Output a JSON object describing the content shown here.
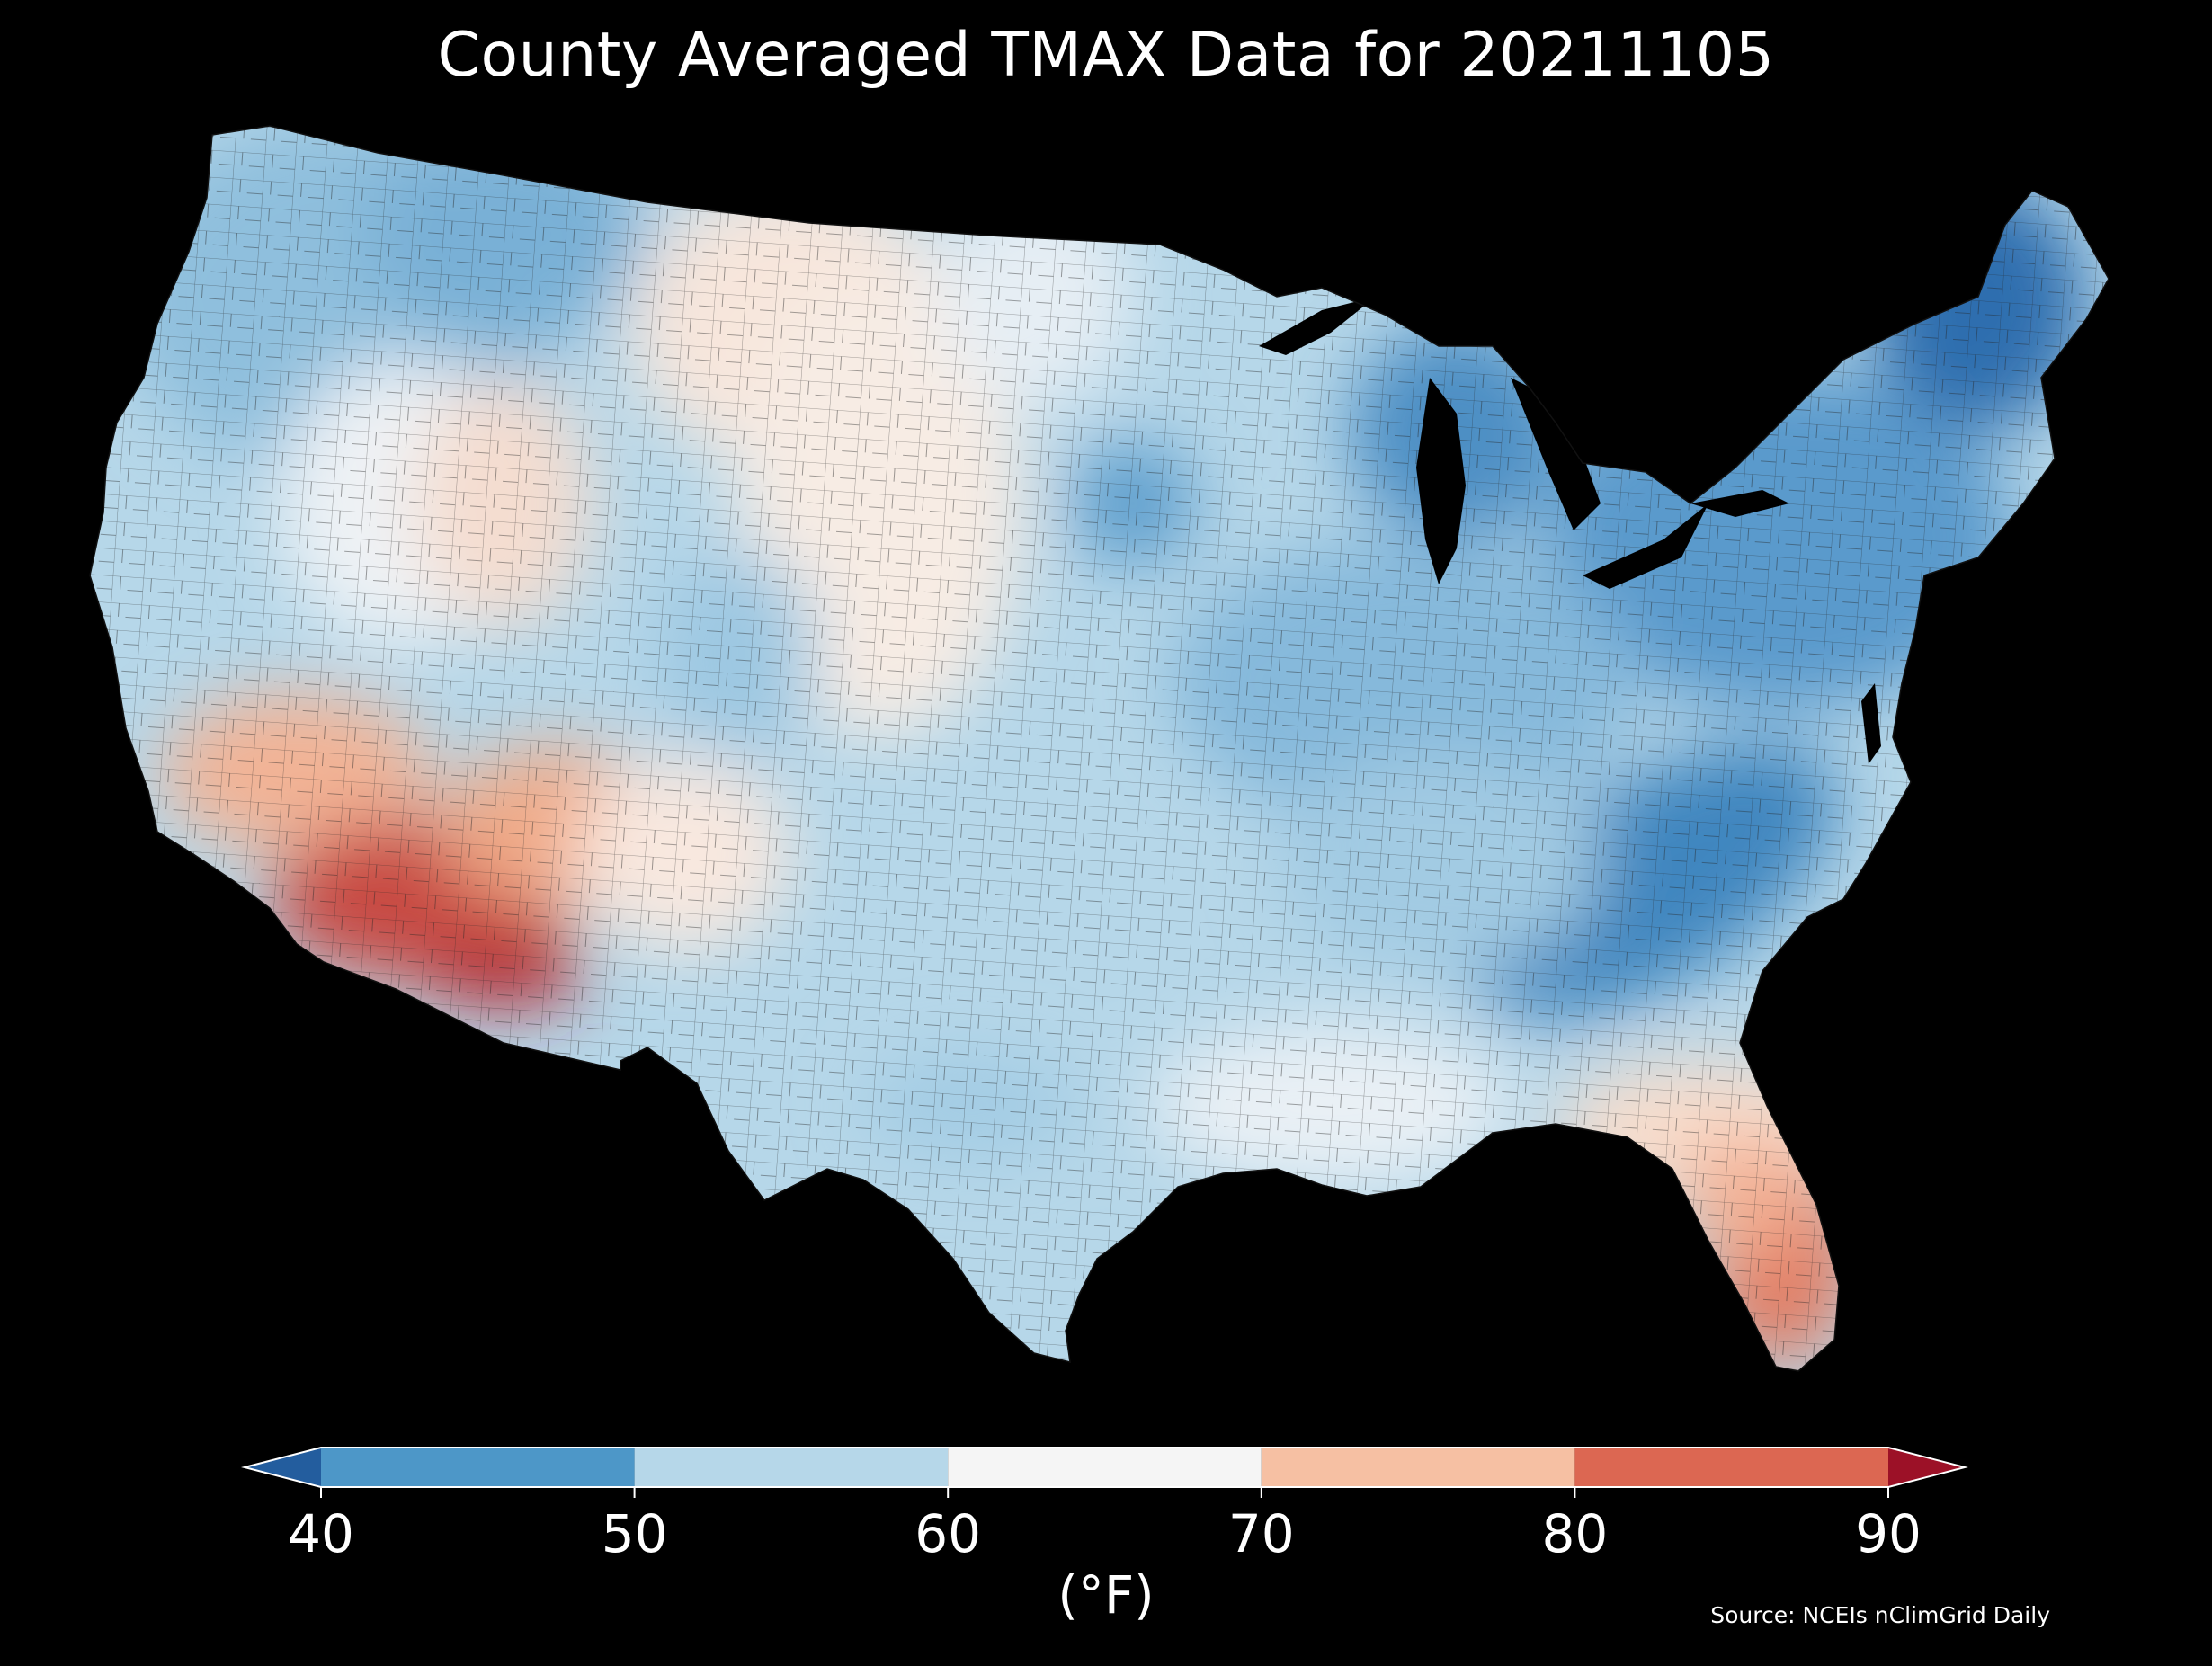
{
  "title": "County Averaged TMAX Data for 20211105",
  "colorbar": {
    "units": "(°F)",
    "ticks": [
      "40",
      "50",
      "60",
      "70",
      "80",
      "90"
    ],
    "bins": [
      {
        "range": [
          40,
          50
        ],
        "color": "#4d97c8"
      },
      {
        "range": [
          50,
          60
        ],
        "color": "#b6d7e9"
      },
      {
        "range": [
          60,
          70
        ],
        "color": "#f5f5f5"
      },
      {
        "range": [
          70,
          80
        ],
        "color": "#f6c0a3"
      },
      {
        "range": [
          80,
          90
        ],
        "color": "#dc6752"
      }
    ],
    "under_color": "#235d9e",
    "over_color": "#9c1127"
  },
  "source": "Source: NCEIs nClimGrid Daily",
  "colors": {
    "background": "#000000",
    "land_default": "#b6d7e9",
    "county_lines": "#222222"
  }
}
